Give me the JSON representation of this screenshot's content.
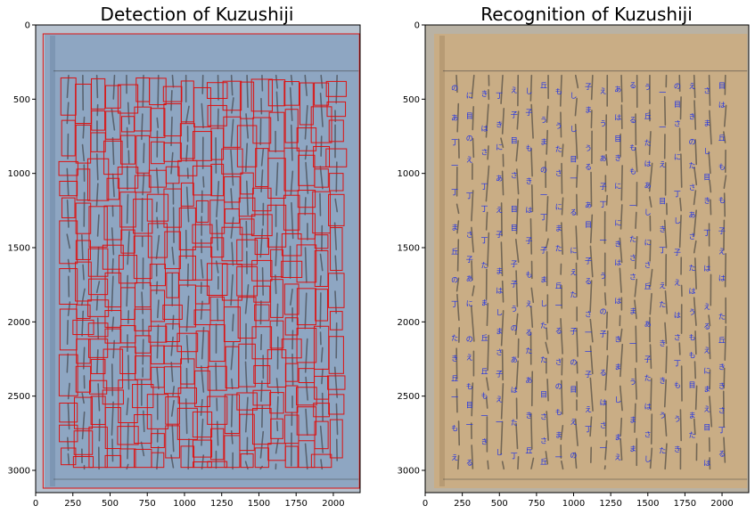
{
  "chart_data": [
    {
      "type": "image",
      "title": "Detection of Kuzushiji",
      "xlim": [
        0,
        2180
      ],
      "ylim": [
        3150,
        0
      ],
      "xticks": [
        0,
        250,
        500,
        750,
        1000,
        1250,
        1500,
        1750,
        2000
      ],
      "yticks": [
        0,
        500,
        1000,
        1500,
        2000,
        2500,
        3000
      ],
      "image_tint": "#8ea6c2",
      "box_color": "#dd1111",
      "annotations": "red bounding boxes around each detected character"
    },
    {
      "type": "image",
      "title": "Recognition of Kuzushiji",
      "xlim": [
        0,
        2180
      ],
      "ylim": [
        3150,
        0
      ],
      "xticks": [
        0,
        250,
        500,
        750,
        1000,
        1250,
        1500,
        1750,
        2000
      ],
      "yticks": [
        0,
        500,
        1000,
        1500,
        2000,
        2500,
        3000
      ],
      "image_tint": "#c9ad85",
      "label_color": "#1a2ee8",
      "annotations": "blue recognized character labels at each character position"
    }
  ]
}
